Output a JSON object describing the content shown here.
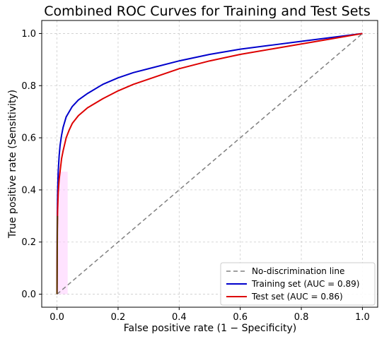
{
  "chart_data": {
    "type": "line",
    "title": "Combined ROC Curves for Training and Test Sets",
    "xlabel": "False positive rate (1 − Specificity)",
    "ylabel": "True positive rate (Sensitivity)",
    "xlim": [
      -0.05,
      1.05
    ],
    "ylim": [
      -0.05,
      1.05
    ],
    "xticks": [
      "0.0",
      "0.2",
      "0.4",
      "0.6",
      "0.8",
      "1.0"
    ],
    "yticks": [
      "0.0",
      "0.2",
      "0.4",
      "0.6",
      "0.8",
      "1.0"
    ],
    "grid": true,
    "legend_position": "lower-right",
    "series": [
      {
        "name": "No-discrimination line",
        "color": "#808080",
        "style": "dashed",
        "x": [
          0,
          1
        ],
        "y": [
          0,
          1
        ]
      },
      {
        "name": "Training set (AUC = 0.89)",
        "color": "#0000cc",
        "style": "solid",
        "x": [
          0,
          0.0005,
          0.001,
          0.002,
          0.004,
          0.007,
          0.01,
          0.015,
          0.02,
          0.03,
          0.04,
          0.05,
          0.07,
          0.1,
          0.15,
          0.2,
          0.25,
          0.3,
          0.4,
          0.5,
          0.6,
          0.7,
          0.8,
          0.9,
          1.0
        ],
        "y": [
          0,
          0.24,
          0.31,
          0.39,
          0.47,
          0.53,
          0.57,
          0.61,
          0.64,
          0.68,
          0.7,
          0.72,
          0.745,
          0.77,
          0.805,
          0.83,
          0.85,
          0.865,
          0.895,
          0.92,
          0.94,
          0.955,
          0.97,
          0.985,
          1.0
        ]
      },
      {
        "name": "Test set (AUC = 0.86)",
        "color": "#dd0000",
        "style": "solid",
        "x": [
          0,
          0.0005,
          0.001,
          0.002,
          0.004,
          0.007,
          0.01,
          0.015,
          0.02,
          0.03,
          0.04,
          0.05,
          0.07,
          0.1,
          0.15,
          0.2,
          0.25,
          0.3,
          0.4,
          0.5,
          0.6,
          0.7,
          0.8,
          0.9,
          1.0
        ],
        "y": [
          0,
          0.18,
          0.25,
          0.32,
          0.39,
          0.44,
          0.47,
          0.52,
          0.55,
          0.6,
          0.63,
          0.655,
          0.685,
          0.715,
          0.75,
          0.78,
          0.805,
          0.825,
          0.865,
          0.895,
          0.92,
          0.94,
          0.96,
          0.98,
          1.0
        ]
      }
    ],
    "highlight_band": {
      "color": "#ffccff",
      "x_range": [
        0,
        0.035
      ]
    }
  },
  "colors": {
    "grid": "#cccccc",
    "overlap_curve": "#5a3a00",
    "legend_border": "#cccccc"
  }
}
